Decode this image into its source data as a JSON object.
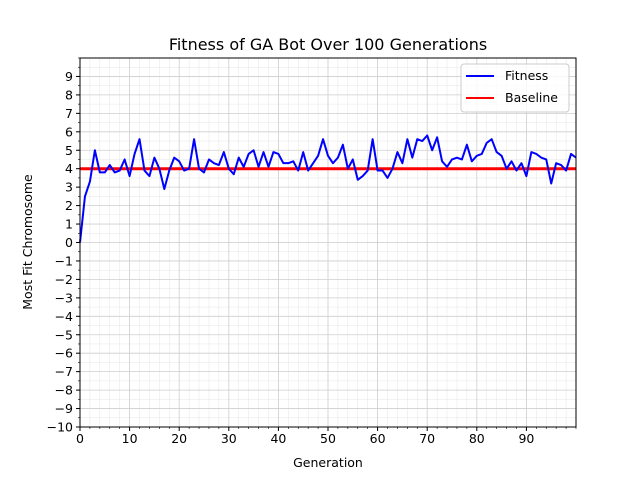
{
  "chart_data": {
    "type": "line",
    "title": "Fitness of GA Bot Over 100 Generations",
    "xlabel": "Generation",
    "ylabel": "Most Fit Chromosome",
    "xlim": [
      0,
      100
    ],
    "ylim": [
      -10,
      10
    ],
    "x_ticks": [
      0,
      10,
      20,
      30,
      40,
      50,
      60,
      70,
      80,
      90
    ],
    "y_ticks": [
      -10,
      -9,
      -8,
      -7,
      -6,
      -5,
      -4,
      -3,
      -2,
      -1,
      0,
      1,
      2,
      3,
      4,
      5,
      6,
      7,
      8,
      9
    ],
    "grid": true,
    "minor_grid": true,
    "legend_position": "top-right",
    "series": [
      {
        "name": "Fitness",
        "color": "#0000ff",
        "values": [
          0.0,
          2.5,
          3.3,
          5.0,
          3.8,
          3.8,
          4.2,
          3.8,
          3.9,
          4.5,
          3.6,
          4.8,
          5.6,
          3.9,
          3.6,
          4.6,
          4.0,
          2.9,
          3.9,
          4.6,
          4.4,
          3.9,
          4.0,
          5.6,
          4.0,
          3.8,
          4.5,
          4.3,
          4.2,
          4.9,
          4.0,
          3.7,
          4.6,
          4.1,
          4.8,
          5.0,
          4.1,
          4.9,
          4.1,
          4.9,
          4.8,
          4.3,
          4.3,
          4.4,
          3.9,
          4.9,
          3.9,
          4.3,
          4.7,
          5.6,
          4.7,
          4.3,
          4.6,
          5.3,
          4.0,
          4.5,
          3.4,
          3.6,
          3.9,
          5.6,
          3.9,
          3.9,
          3.5,
          4.0,
          4.9,
          4.3,
          5.6,
          4.6,
          5.6,
          5.5,
          5.8,
          5.0,
          5.7,
          4.4,
          4.1,
          4.5,
          4.6,
          4.5,
          5.3,
          4.4,
          4.7,
          4.8,
          5.4,
          5.6,
          4.9,
          4.7,
          4.0,
          4.4,
          3.9,
          4.3,
          3.6,
          4.9,
          4.8,
          4.6,
          4.5,
          3.2,
          4.3,
          4.2,
          3.9,
          4.8,
          4.6
        ]
      },
      {
        "name": "Baseline",
        "color": "#ff0000",
        "values": [
          4,
          4
        ]
      }
    ]
  }
}
